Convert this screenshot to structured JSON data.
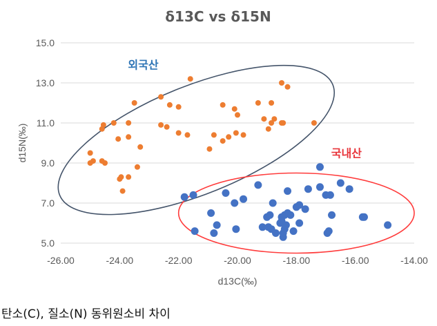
{
  "chart_data": {
    "type": "scatter",
    "title": "δ13C vs δ15N",
    "xlabel": "d13C(‰)",
    "ylabel": "d15N(‰)",
    "xlim": [
      -26,
      -14
    ],
    "ylim": [
      5,
      15
    ],
    "xticks": [
      -26,
      -24,
      -22,
      -20,
      -18,
      -16,
      -14
    ],
    "xtick_labels": [
      "-26.00",
      "-24.00",
      "-22.00",
      "-20.00",
      "-18.00",
      "-16.00",
      "-14.00"
    ],
    "yticks": [
      5,
      7,
      9,
      11,
      13,
      15
    ],
    "ytick_labels": [
      "5.0",
      "7.0",
      "9.0",
      "11.0",
      "13.0",
      "15.0"
    ],
    "grid": "horizontal",
    "legend": "none",
    "series": [
      {
        "color": "#ED7D31",
        "points": [
          [
            -25.0,
            9.5
          ],
          [
            -25.0,
            9.0
          ],
          [
            -24.9,
            9.1
          ],
          [
            -24.6,
            9.1
          ],
          [
            -24.5,
            9.0
          ],
          [
            -24.6,
            10.7
          ],
          [
            -24.55,
            10.9
          ],
          [
            -24.2,
            11.0
          ],
          [
            -24.05,
            10.2
          ],
          [
            -24.0,
            8.2
          ],
          [
            -23.95,
            8.3
          ],
          [
            -23.9,
            7.6
          ],
          [
            -23.7,
            10.3
          ],
          [
            -23.7,
            11.0
          ],
          [
            -23.7,
            8.3
          ],
          [
            -23.5,
            12.0
          ],
          [
            -23.4,
            8.8
          ],
          [
            -23.3,
            9.8
          ],
          [
            -22.6,
            10.9
          ],
          [
            -22.6,
            12.3
          ],
          [
            -22.4,
            10.8
          ],
          [
            -22.3,
            11.9
          ],
          [
            -22.0,
            11.8
          ],
          [
            -22.0,
            10.5
          ],
          [
            -21.7,
            10.4
          ],
          [
            -21.6,
            13.2
          ],
          [
            -20.95,
            9.7
          ],
          [
            -20.8,
            10.4
          ],
          [
            -20.5,
            11.9
          ],
          [
            -20.5,
            10.1
          ],
          [
            -20.3,
            10.3
          ],
          [
            -20.1,
            11.7
          ],
          [
            -20.05,
            10.5
          ],
          [
            -20.0,
            11.4
          ],
          [
            -19.8,
            10.4
          ],
          [
            -19.3,
            12.0
          ],
          [
            -19.1,
            11.2
          ],
          [
            -18.95,
            10.7
          ],
          [
            -18.85,
            11.0
          ],
          [
            -18.85,
            12.0
          ],
          [
            -18.75,
            11.2
          ],
          [
            -18.5,
            13.0
          ],
          [
            -18.5,
            11.0
          ],
          [
            -18.45,
            11.0
          ],
          [
            -18.3,
            12.8
          ],
          [
            -17.4,
            11.0
          ]
        ]
      },
      {
        "color": "#4472C4",
        "points": [
          [
            -21.8,
            7.3
          ],
          [
            -21.5,
            7.4
          ],
          [
            -21.45,
            5.6
          ],
          [
            -20.9,
            6.5
          ],
          [
            -20.8,
            5.5
          ],
          [
            -20.7,
            5.9
          ],
          [
            -20.4,
            7.5
          ],
          [
            -20.1,
            7.0
          ],
          [
            -20.05,
            5.7
          ],
          [
            -19.8,
            7.2
          ],
          [
            -19.3,
            7.9
          ],
          [
            -19.15,
            5.8
          ],
          [
            -19.0,
            6.3
          ],
          [
            -18.95,
            5.8
          ],
          [
            -18.9,
            6.4
          ],
          [
            -18.85,
            5.7
          ],
          [
            -18.8,
            7.0
          ],
          [
            -18.7,
            5.5
          ],
          [
            -18.55,
            6.0
          ],
          [
            -18.5,
            6.1
          ],
          [
            -18.5,
            6.3
          ],
          [
            -18.45,
            5.3
          ],
          [
            -18.45,
            5.5
          ],
          [
            -18.4,
            5.7
          ],
          [
            -18.4,
            6.4
          ],
          [
            -18.35,
            5.9
          ],
          [
            -18.3,
            6.5
          ],
          [
            -18.3,
            7.6
          ],
          [
            -18.2,
            6.4
          ],
          [
            -18.1,
            5.6
          ],
          [
            -18.0,
            6.8
          ],
          [
            -17.9,
            6.0
          ],
          [
            -17.9,
            6.9
          ],
          [
            -17.7,
            6.7
          ],
          [
            -17.6,
            7.7
          ],
          [
            -17.2,
            8.8
          ],
          [
            -17.2,
            7.8
          ],
          [
            -17.0,
            7.4
          ],
          [
            -16.95,
            5.5
          ],
          [
            -16.9,
            5.6
          ],
          [
            -16.85,
            7.4
          ],
          [
            -16.8,
            6.4
          ],
          [
            -16.5,
            8.0
          ],
          [
            -16.2,
            7.7
          ],
          [
            -15.75,
            6.3
          ],
          [
            -15.7,
            6.3
          ],
          [
            -14.9,
            5.9
          ]
        ]
      }
    ],
    "annotations": [
      {
        "text": "외국산",
        "color": "#2E75B6",
        "x": -23.2,
        "y": 13.7
      },
      {
        "text": "국내산",
        "color": "#E8353B",
        "x": -16.3,
        "y": 9.3
      }
    ],
    "ellipses": [
      {
        "color": "#44546A",
        "cx": -21.4,
        "cy": 10.15,
        "rx": 5.0,
        "ry": 2.7,
        "rotation": -22
      },
      {
        "color": "#FF3B3B",
        "cx": -18.0,
        "cy": 6.5,
        "rx": 4.0,
        "ry": 2.0,
        "rotation": 0
      }
    ]
  },
  "caption": "탄소(C), 질소(N) 동위원소비 차이"
}
